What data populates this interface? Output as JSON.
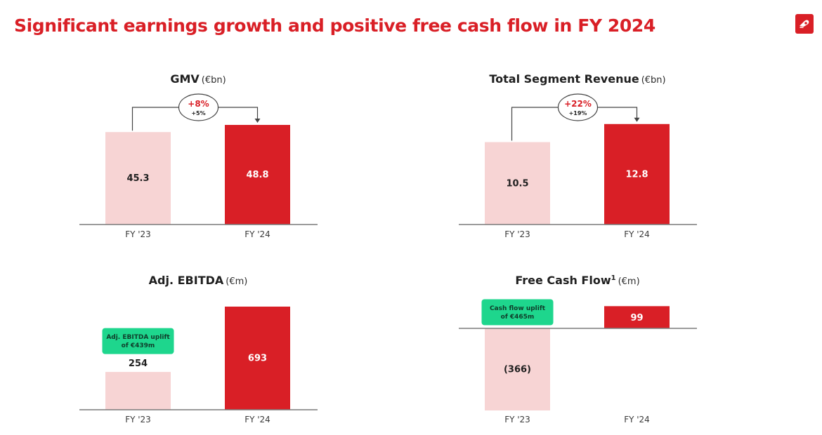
{
  "page": {
    "title": "Significant earnings growth and positive free cash flow in FY 2024"
  },
  "colors": {
    "accent": "#d91f26",
    "prior_year_bar": "#f7d4d4",
    "current_year_bar": "#d91f26",
    "callout": "#1ed68d",
    "axis": "#7a7a7a"
  },
  "logo": {
    "icon": "delivery-hero-logo-icon"
  },
  "chart_data": [
    {
      "type": "bar",
      "title": "GMV",
      "unit": "(€bn)",
      "categories": [
        "FY '23",
        "FY '24"
      ],
      "values": [
        45.3,
        48.8
      ],
      "value_labels": [
        "45.3",
        "48.8"
      ],
      "ylim": [
        0,
        55
      ],
      "growth_badge": {
        "primary": "+8%",
        "secondary": "+5%"
      },
      "callout": null
    },
    {
      "type": "bar",
      "title": "Total Segment Revenue",
      "unit": "(€bn)",
      "categories": [
        "FY '23",
        "FY '24"
      ],
      "values": [
        10.5,
        12.8
      ],
      "value_labels": [
        "10.5",
        "12.8"
      ],
      "ylim": [
        0,
        14.3
      ],
      "growth_badge": {
        "primary": "+22%",
        "secondary": "+19%"
      },
      "callout": null
    },
    {
      "type": "bar",
      "title": "Adj. EBITDA",
      "unit": "(€m)",
      "categories": [
        "FY '23",
        "FY '24"
      ],
      "values": [
        254,
        693
      ],
      "value_labels": [
        "254",
        "693"
      ],
      "ylim": [
        0,
        693
      ],
      "growth_badge": null,
      "callout": [
        "Adj. EBITDA uplift",
        "of €439m"
      ]
    },
    {
      "type": "bar",
      "title": "Free Cash Flow",
      "title_superscript": "1",
      "unit": "(€m)",
      "categories": [
        "FY '23",
        "FY '24"
      ],
      "values": [
        -366,
        99
      ],
      "value_labels": [
        "(366)",
        "99"
      ],
      "ylim": [
        -366,
        99
      ],
      "growth_badge": null,
      "callout": [
        "Cash flow uplift",
        "of €465m"
      ]
    }
  ]
}
